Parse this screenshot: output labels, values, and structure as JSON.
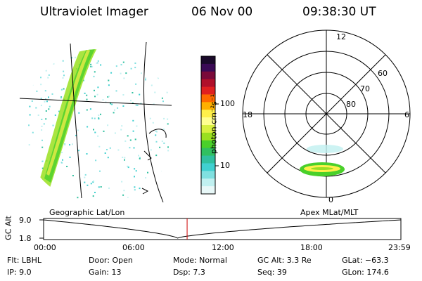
{
  "header": {
    "title": "Ultraviolet Imager",
    "date": "06 Nov 00",
    "time": "09:38:30 UT"
  },
  "colorbar": {
    "unit_label": "photon cm⁻²s⁻¹",
    "ticks": [
      "100",
      "10"
    ],
    "colors": [
      "#1a0a2a",
      "#3a0a55",
      "#7a0a3a",
      "#b0102a",
      "#e02020",
      "#ff6a00",
      "#ffb000",
      "#fff04a",
      "#ffff90",
      "#d8f040",
      "#9ae020",
      "#4ad02a",
      "#30c060",
      "#30c0a0",
      "#40d0d0",
      "#80e0e0",
      "#c0f0f0",
      "#e8f8f8"
    ]
  },
  "polar": {
    "clock_labels": {
      "top": "12",
      "left": "18",
      "right": "6",
      "bottom": "0"
    },
    "lat_labels": [
      "60",
      "70",
      "80"
    ]
  },
  "timeline": {
    "left_label": "Geographic Lat/Lon",
    "right_label": "Apex MLat/MLT",
    "y_axis_label": "GC Alt",
    "y_ticks": [
      "9.0",
      "1.8"
    ],
    "x_ticks": [
      "00:00",
      "06:00",
      "12:00",
      "18:00",
      "23:59"
    ],
    "current_time_marker_hours": 9.64,
    "marker_color": "#cc0000"
  },
  "info": {
    "flt": "Flt: LBHL",
    "ip": "IP:  9.0",
    "door": "Door: Open",
    "gain": "Gain: 13",
    "mode": "Mode: Normal",
    "dsp": "Dsp:     7.3",
    "gc_alt": "GC Alt: 3.3 Re",
    "seq": "Seq: 39",
    "glat": "GLat: −63.3",
    "glon": "GLon: 174.6"
  }
}
